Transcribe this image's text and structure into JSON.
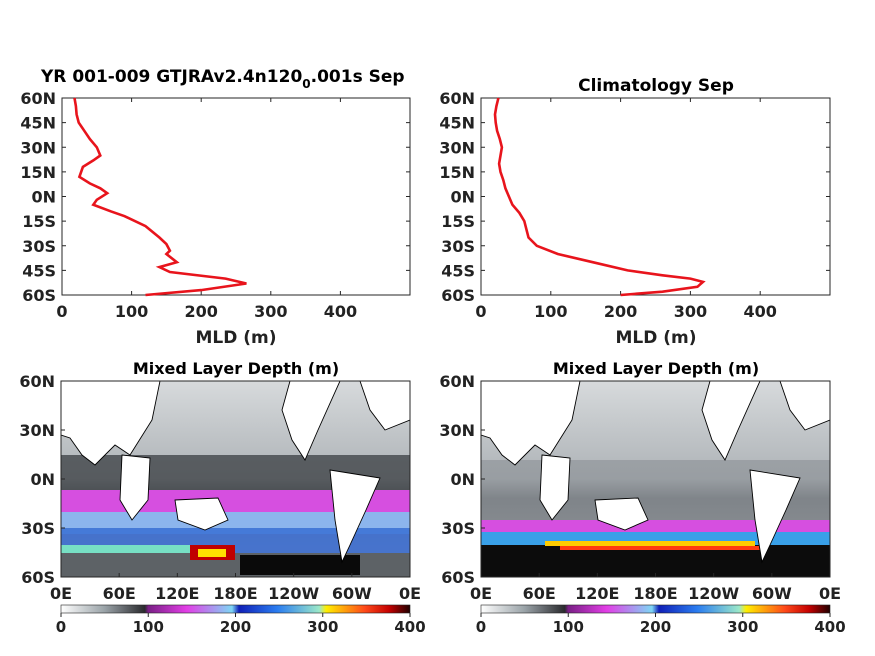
{
  "chart_data": [
    {
      "type": "line",
      "title": "YR 001-009 GTJRAv2.4n120",
      "title_subscript": "0",
      "title_suffix": ".001s Sep",
      "xlabel": "MLD (m)",
      "xlim": [
        0,
        500
      ],
      "xticks": [
        "0",
        "100",
        "200",
        "300",
        "400"
      ],
      "ylim": [
        -60,
        60
      ],
      "yticks": [
        "60N",
        "45N",
        "30N",
        "15N",
        "0N",
        "15S",
        "30S",
        "45S",
        "60S"
      ],
      "color": "#e8141c",
      "series": [
        {
          "x": [
            18,
            20,
            21,
            24,
            32,
            40,
            50,
            55,
            45,
            30,
            25,
            40,
            55,
            65,
            50,
            45,
            70,
            90,
            120,
            140,
            150,
            155,
            150,
            165,
            140,
            155,
            235,
            265,
            200,
            120
          ],
          "y": [
            60,
            55,
            50,
            45,
            40,
            35,
            30,
            25,
            22,
            18,
            12,
            8,
            5,
            2,
            -2,
            -5,
            -9,
            -12,
            -18,
            -25,
            -29,
            -33,
            -35,
            -40,
            -43,
            -46,
            -50,
            -53,
            -57,
            -60
          ]
        }
      ]
    },
    {
      "type": "line",
      "title": "Climatology Sep",
      "xlabel": "MLD (m)",
      "xlim": [
        0,
        500
      ],
      "xticks": [
        "0",
        "100",
        "200",
        "300",
        "400"
      ],
      "ylim": [
        -60,
        60
      ],
      "yticks": [
        "60N",
        "45N",
        "30N",
        "15N",
        "0N",
        "15S",
        "30S",
        "45S",
        "60S"
      ],
      "color": "#e8141c",
      "series": [
        {
          "x": [
            25,
            22,
            20,
            21,
            23,
            27,
            30,
            28,
            26,
            28,
            32,
            35,
            40,
            45,
            55,
            62,
            65,
            68,
            80,
            110,
            160,
            210,
            260,
            300,
            318,
            310,
            260,
            200
          ],
          "y": [
            60,
            55,
            50,
            45,
            40,
            35,
            30,
            25,
            20,
            15,
            10,
            5,
            0,
            -5,
            -10,
            -15,
            -20,
            -25,
            -30,
            -35,
            -40,
            -45,
            -48,
            -50,
            -52,
            -55,
            -58,
            -60
          ]
        }
      ]
    },
    {
      "type": "heatmap",
      "title": "Mixed Layer Depth (m)",
      "xticks": [
        "0E",
        "60E",
        "120E",
        "180E",
        "120W",
        "60W",
        "0E"
      ],
      "yticks": [
        "60N",
        "30N",
        "0N",
        "30S",
        "60S"
      ],
      "colorbar_ticks": [
        "0",
        "100",
        "200",
        "300",
        "400"
      ],
      "clim": [
        0,
        400
      ]
    },
    {
      "type": "heatmap",
      "title": "Mixed Layer Depth (m)",
      "xticks": [
        "0E",
        "60E",
        "120E",
        "180E",
        "120W",
        "60W",
        "0E"
      ],
      "yticks": [
        "60N",
        "30N",
        "0N",
        "30S",
        "60S"
      ],
      "colorbar_ticks": [
        "0",
        "100",
        "200",
        "300",
        "400"
      ],
      "clim": [
        0,
        400
      ]
    }
  ]
}
